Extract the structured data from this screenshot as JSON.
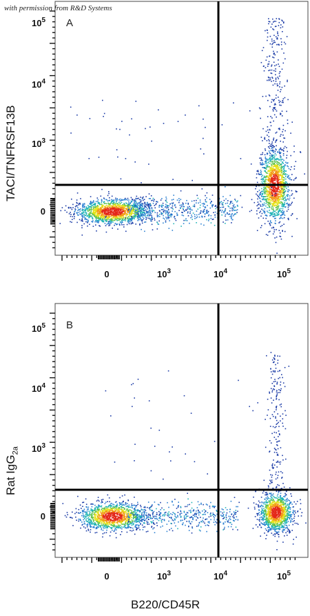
{
  "watermark": "with permission from R&D Systems",
  "x_axis_label": "B220/CD45R",
  "chart_data": [
    {
      "type": "scatter",
      "panel": "A",
      "ylabel": "TACI/TNFRSF13B",
      "xlabel": "B220/CD45R",
      "x_scale": "biexponential",
      "y_scale": "biexponential",
      "x_ticks": [
        "0",
        "10^3",
        "10^4",
        "10^5"
      ],
      "y_ticks": [
        "0",
        "10^3",
        "10^4",
        "10^5"
      ],
      "gates": {
        "x": 7000,
        "y": 220
      },
      "populations": [
        {
          "name": "B220- TACI-",
          "center_x": 50,
          "center_y": 0
        },
        {
          "name": "B220+ TACI+",
          "center_x": 60000,
          "center_y": 300
        }
      ]
    },
    {
      "type": "scatter",
      "panel": "B",
      "ylabel": "Rat IgG2a",
      "xlabel": "B220/CD45R",
      "x_scale": "biexponential",
      "y_scale": "biexponential",
      "x_ticks": [
        "0",
        "10^3",
        "10^4",
        "10^5"
      ],
      "y_ticks": [
        "0",
        "10^3",
        "10^4",
        "10^5"
      ],
      "gates": {
        "x": 7000,
        "y": 220
      },
      "populations": [
        {
          "name": "B220- isotype",
          "center_x": 50,
          "center_y": 0
        },
        {
          "name": "B220+ isotype",
          "center_x": 60000,
          "center_y": 0
        }
      ]
    }
  ],
  "panels": [
    {
      "letter": "A",
      "ylabel_main": "TACI/TNFRSF13B",
      "ylabel_sub": ""
    },
    {
      "letter": "B",
      "ylabel_main": "Rat IgG",
      "ylabel_sub": "2a"
    }
  ]
}
